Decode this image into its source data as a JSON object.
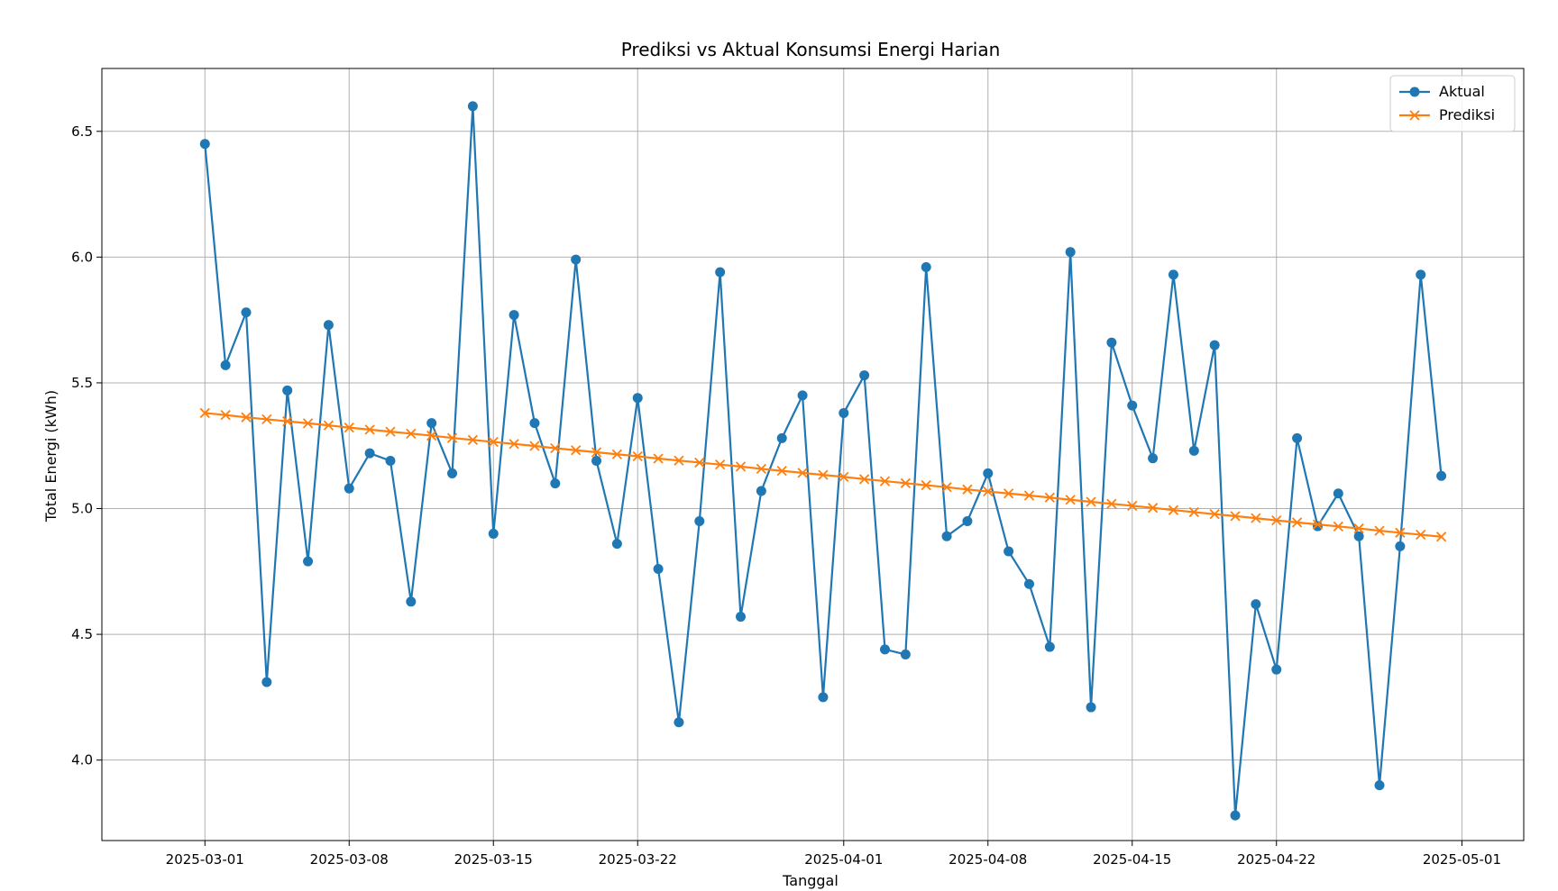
{
  "chart_data": {
    "type": "line",
    "title": "Prediksi vs Aktual Konsumsi Energi Harian",
    "xlabel": "Tanggal",
    "ylabel": "Total Energi (kWh)",
    "grid": true,
    "legend_position": "top-right",
    "xlim": [
      "2025-02-24",
      "2025-05-04"
    ],
    "ylim": [
      3.68,
      6.75
    ],
    "xticks": [
      "2025-03-01",
      "2025-03-08",
      "2025-03-15",
      "2025-03-22",
      "2025-04-01",
      "2025-04-08",
      "2025-04-15",
      "2025-04-22",
      "2025-05-01"
    ],
    "yticks": [
      4.0,
      4.5,
      5.0,
      5.5,
      6.0,
      6.5
    ],
    "x_start": "2025-03-01",
    "x_step_days": 1,
    "series": [
      {
        "name": "Aktual",
        "color": "#1f77b4",
        "marker": "circle",
        "values": [
          6.45,
          5.57,
          5.78,
          4.31,
          5.47,
          4.79,
          5.73,
          5.08,
          5.22,
          5.19,
          4.63,
          5.34,
          5.14,
          6.6,
          4.9,
          5.77,
          5.34,
          5.1,
          5.99,
          5.19,
          4.86,
          5.44,
          4.76,
          4.15,
          4.95,
          5.94,
          4.57,
          5.07,
          5.28,
          5.45,
          4.25,
          5.38,
          5.53,
          4.44,
          4.42,
          5.96,
          4.89,
          4.95,
          5.14,
          4.83,
          4.7,
          4.45,
          6.02,
          4.21,
          5.66,
          5.41,
          5.2,
          5.93,
          5.23,
          5.65,
          3.78,
          4.62,
          4.36,
          5.28,
          4.93,
          5.06,
          4.89,
          3.9,
          4.85,
          5.93,
          5.13
        ]
      },
      {
        "name": "Prediksi",
        "color": "#ff7f0e",
        "marker": "x",
        "values": [
          5.38,
          5.372,
          5.363,
          5.355,
          5.347,
          5.339,
          5.331,
          5.322,
          5.314,
          5.306,
          5.298,
          5.29,
          5.281,
          5.273,
          5.265,
          5.257,
          5.249,
          5.24,
          5.232,
          5.224,
          5.216,
          5.208,
          5.199,
          5.191,
          5.183,
          5.175,
          5.167,
          5.158,
          5.15,
          5.142,
          5.134,
          5.126,
          5.117,
          5.109,
          5.101,
          5.093,
          5.085,
          5.076,
          5.068,
          5.06,
          5.052,
          5.044,
          5.035,
          5.027,
          5.019,
          5.011,
          5.003,
          4.994,
          4.986,
          4.978,
          4.97,
          4.962,
          4.953,
          4.945,
          4.937,
          4.929,
          4.921,
          4.912,
          4.904,
          4.896,
          4.888
        ]
      }
    ]
  }
}
